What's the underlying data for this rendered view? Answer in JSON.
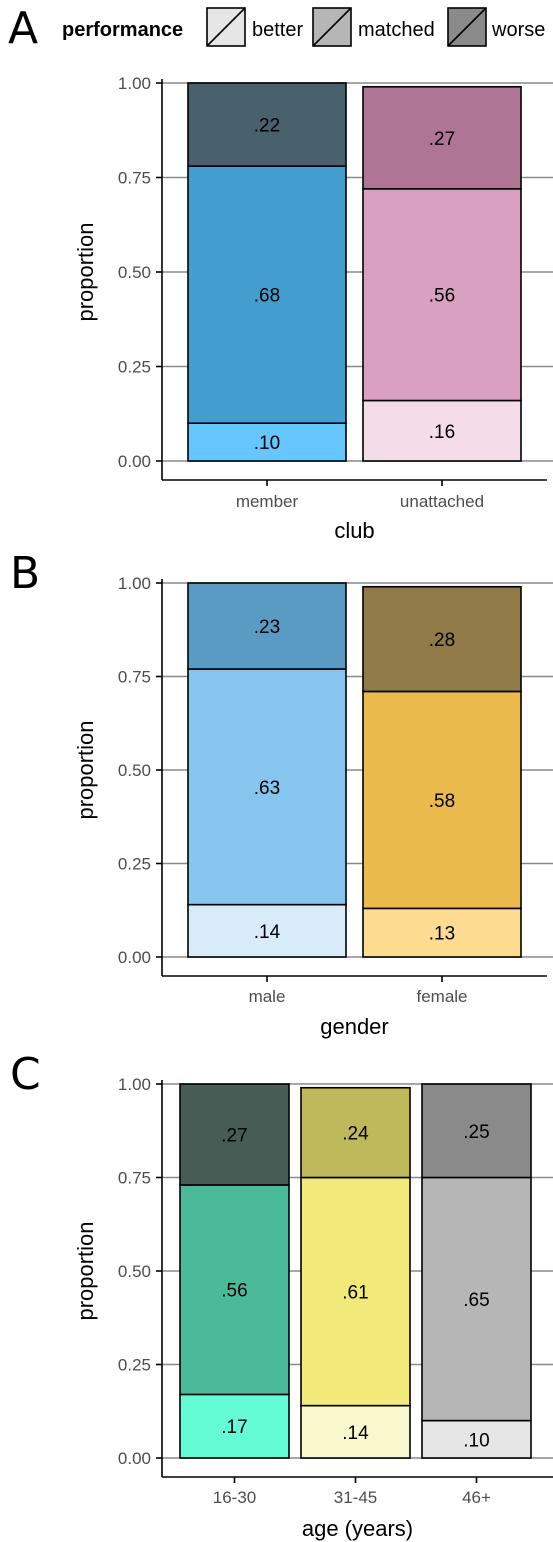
{
  "legend": {
    "title": "performance",
    "entries": [
      {
        "label": "better",
        "color": "#e6e6e6"
      },
      {
        "label": "matched",
        "color": "#b6b6b6"
      },
      {
        "label": "worse",
        "color": "#8a8a8a"
      }
    ]
  },
  "chart_data": [
    {
      "panel": "A",
      "type": "bar",
      "stacked": true,
      "xlabel": "club",
      "ylabel": "proportion",
      "ylim": [
        0,
        1
      ],
      "yticks": [
        "0.00",
        "0.25",
        "0.50",
        "0.75",
        "1.00"
      ],
      "categories": [
        "member",
        "unattached"
      ],
      "series": [
        {
          "name": "better",
          "values": [
            0.1,
            0.16
          ],
          "labels": [
            ".10",
            ".16"
          ],
          "colors": [
            "#66c7ff",
            "#f4dde9"
          ]
        },
        {
          "name": "matched",
          "values": [
            0.68,
            0.56
          ],
          "labels": [
            ".68",
            ".56"
          ],
          "colors": [
            "#449dcf",
            "#daa0c1"
          ]
        },
        {
          "name": "worse",
          "values": [
            0.22,
            0.27
          ],
          "labels": [
            ".22",
            ".27"
          ],
          "colors": [
            "#48616d",
            "#af7594"
          ]
        }
      ]
    },
    {
      "panel": "B",
      "type": "bar",
      "stacked": true,
      "xlabel": "gender",
      "ylabel": "proportion",
      "ylim": [
        0,
        1
      ],
      "yticks": [
        "0.00",
        "0.25",
        "0.50",
        "0.75",
        "1.00"
      ],
      "categories": [
        "male",
        "female"
      ],
      "series": [
        {
          "name": "better",
          "values": [
            0.14,
            0.13
          ],
          "labels": [
            ".14",
            ".13"
          ],
          "colors": [
            "#d8ebf9",
            "#fddb90"
          ]
        },
        {
          "name": "matched",
          "values": [
            0.63,
            0.58
          ],
          "labels": [
            ".63",
            ".58"
          ],
          "colors": [
            "#86c6ee",
            "#ebba4d"
          ]
        },
        {
          "name": "worse",
          "values": [
            0.23,
            0.28
          ],
          "labels": [
            ".23",
            ".28"
          ],
          "colors": [
            "#599bc3",
            "#8f7a48"
          ]
        }
      ]
    },
    {
      "panel": "C",
      "type": "bar",
      "stacked": true,
      "xlabel": "age (years)",
      "ylabel": "proportion",
      "ylim": [
        0,
        1
      ],
      "yticks": [
        "0.00",
        "0.25",
        "0.50",
        "0.75",
        "1.00"
      ],
      "categories": [
        "16-30",
        "31-45",
        "46+"
      ],
      "series": [
        {
          "name": "better",
          "values": [
            0.17,
            0.14,
            0.1
          ],
          "labels": [
            ".17",
            ".14",
            ".10"
          ],
          "colors": [
            "#64fcd5",
            "#f9f7cc",
            "#e6e6e6"
          ]
        },
        {
          "name": "matched",
          "values": [
            0.56,
            0.61,
            0.65
          ],
          "labels": [
            ".56",
            ".61",
            ".65"
          ],
          "colors": [
            "#4aba9b",
            "#f1e97a",
            "#b6b6b6"
          ]
        },
        {
          "name": "worse",
          "values": [
            0.27,
            0.24,
            0.25
          ],
          "labels": [
            ".27",
            ".24",
            ".25"
          ],
          "colors": [
            "#485c56",
            "#bfb95b",
            "#8a8a8a"
          ]
        }
      ]
    }
  ]
}
